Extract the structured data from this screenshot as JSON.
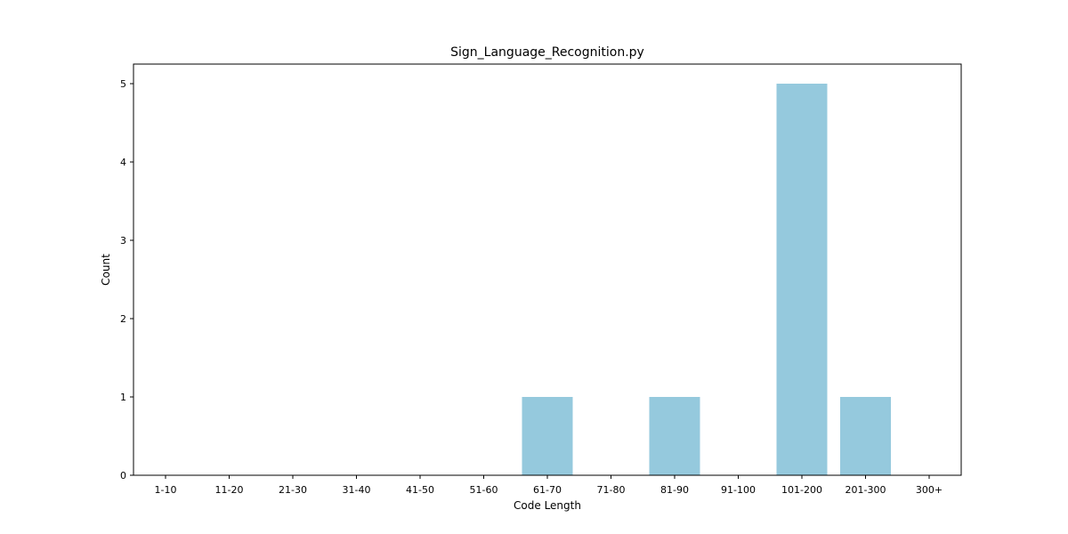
{
  "chart_data": {
    "type": "bar",
    "title": "Sign_Language_Recognition.py",
    "xlabel": "Code Length",
    "ylabel": "Count",
    "categories": [
      "1-10",
      "11-20",
      "21-30",
      "31-40",
      "41-50",
      "51-60",
      "61-70",
      "71-80",
      "81-90",
      "91-100",
      "101-200",
      "201-300",
      "300+"
    ],
    "values": [
      0,
      0,
      0,
      0,
      0,
      0,
      1,
      0,
      1,
      0,
      5,
      1,
      0
    ],
    "ylim": [
      0,
      5.25
    ],
    "yticks": [
      "0",
      "1",
      "2",
      "3",
      "4",
      "5"
    ],
    "grid": false,
    "bar_color": "#95c9dd"
  }
}
